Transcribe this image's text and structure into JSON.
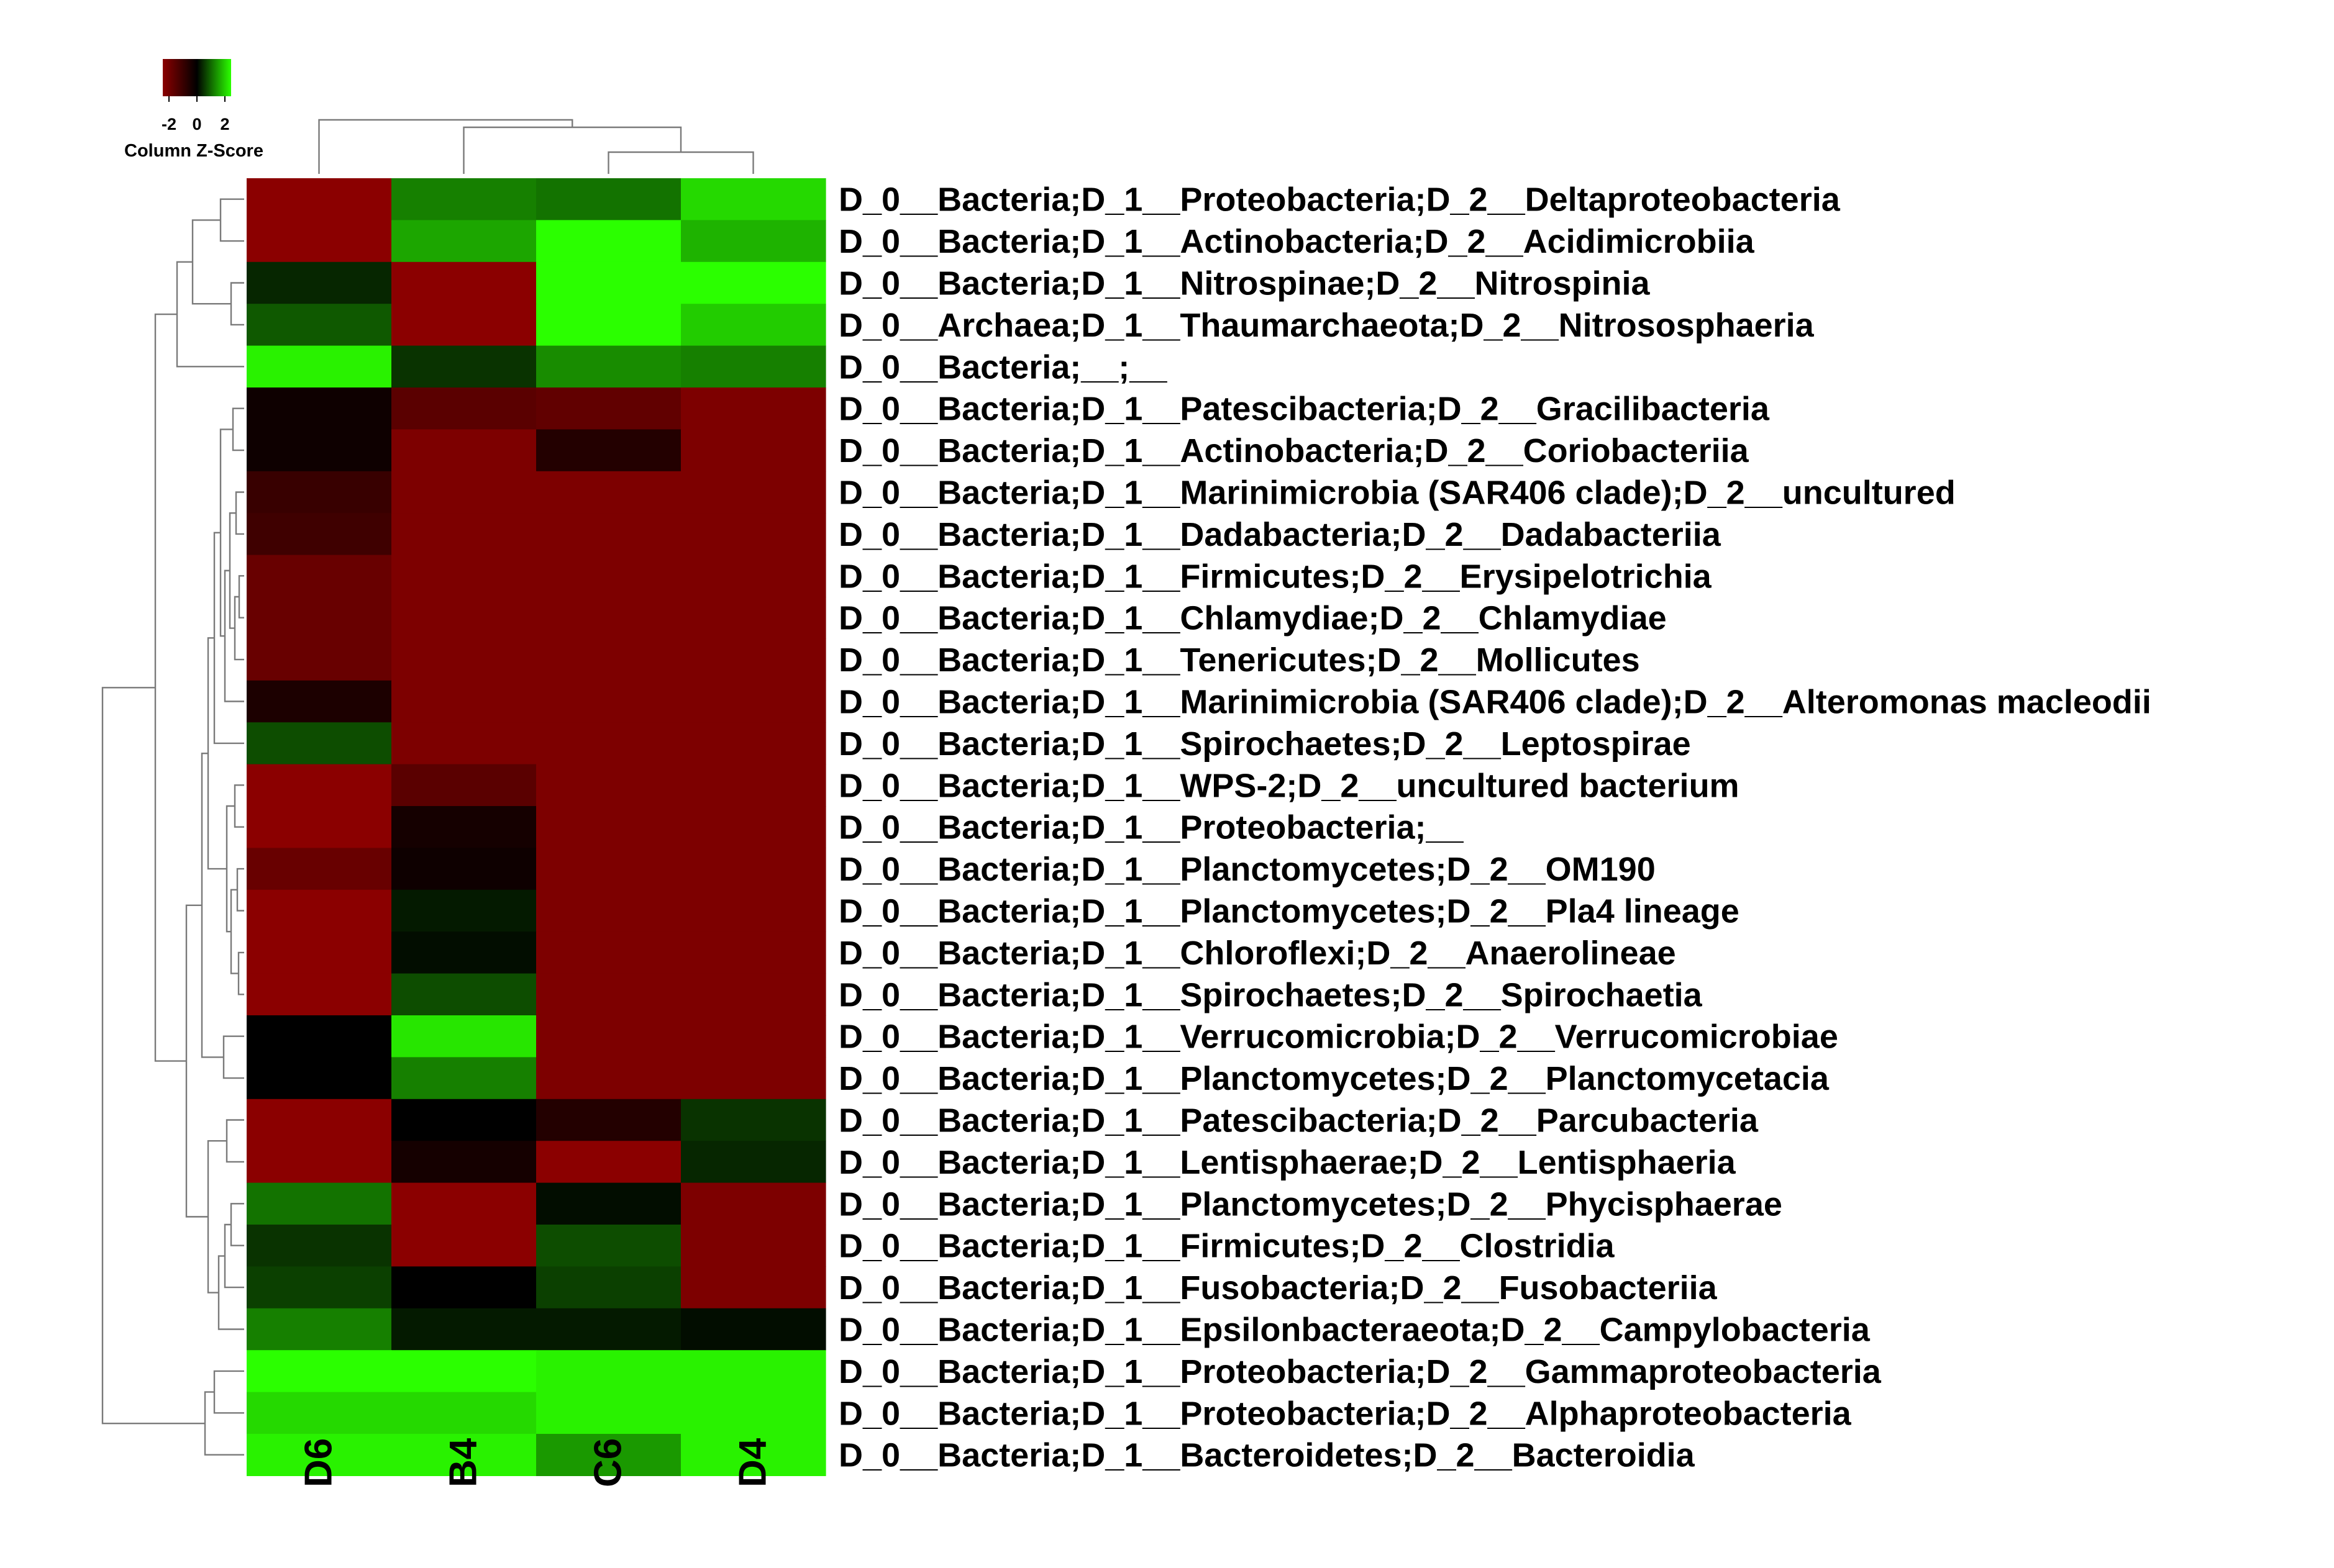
{
  "chart_data": {
    "type": "heatmap",
    "columns": [
      "D6",
      "B4",
      "C6",
      "D4"
    ],
    "rows": [
      "D_0__Bacteria;D_1__Proteobacteria;D_2__Deltaproteobacteria",
      "D_0__Bacteria;D_1__Actinobacteria;D_2__Acidimicrobiia",
      "D_0__Bacteria;D_1__Nitrospinae;D_2__Nitrospinia",
      "D_0__Archaea;D_1__Thaumarchaeota;D_2__Nitrososphaeria",
      "D_0__Bacteria;__;__",
      "D_0__Bacteria;D_1__Patescibacteria;D_2__Gracilibacteria",
      "D_0__Bacteria;D_1__Actinobacteria;D_2__Coriobacteriia",
      "D_0__Bacteria;D_1__Marinimicrobia (SAR406 clade);D_2__uncultured",
      "D_0__Bacteria;D_1__Dadabacteria;D_2__Dadabacteriia",
      "D_0__Bacteria;D_1__Firmicutes;D_2__Erysipelotrichia",
      "D_0__Bacteria;D_1__Chlamydiae;D_2__Chlamydiae",
      "D_0__Bacteria;D_1__Tenericutes;D_2__Mollicutes",
      "D_0__Bacteria;D_1__Marinimicrobia (SAR406 clade);D_2__Alteromonas macleodii",
      "D_0__Bacteria;D_1__Spirochaetes;D_2__Leptospirae",
      "D_0__Bacteria;D_1__WPS-2;D_2__uncultured bacterium",
      "D_0__Bacteria;D_1__Proteobacteria;__",
      "D_0__Bacteria;D_1__Planctomycetes;D_2__OM190",
      "D_0__Bacteria;D_1__Planctomycetes;D_2__Pla4 lineage",
      "D_0__Bacteria;D_1__Chloroflexi;D_2__Anaerolineae",
      "D_0__Bacteria;D_1__Spirochaetes;D_2__Spirochaetia",
      "D_0__Bacteria;D_1__Verrucomicrobia;D_2__Verrucomicrobiae",
      "D_0__Bacteria;D_1__Planctomycetes;D_2__Planctomycetacia",
      "D_0__Bacteria;D_1__Patescibacteria;D_2__Parcubacteria",
      "D_0__Bacteria;D_1__Lentisphaerae;D_2__Lentisphaeria",
      "D_0__Bacteria;D_1__Planctomycetes;D_2__Phycisphaerae",
      "D_0__Bacteria;D_1__Firmicutes;D_2__Clostridia",
      "D_0__Bacteria;D_1__Fusobacteria;D_2__Fusobacteriia",
      "D_0__Bacteria;D_1__Epsilonbacteraeota;D_2__Campylobacteria",
      "D_0__Bacteria;D_1__Proteobacteria;D_2__Gammaproteobacteria",
      "D_0__Bacteria;D_1__Proteobacteria;D_2__Alphaproteobacteria",
      "D_0__Bacteria;D_1__Bacteroidetes;D_2__Bacteroidia"
    ],
    "values": [
      [
        -2.0,
        1.0,
        0.9,
        1.7
      ],
      [
        -2.0,
        1.3,
        2.0,
        1.4
      ],
      [
        0.3,
        -2.0,
        2.0,
        2.0
      ],
      [
        0.7,
        -2.0,
        2.0,
        1.6
      ],
      [
        1.9,
        0.4,
        1.1,
        1.0
      ],
      [
        -0.2,
        -1.3,
        -1.4,
        -1.8
      ],
      [
        -0.2,
        -1.8,
        -0.5,
        -1.8
      ],
      [
        -0.8,
        -1.8,
        -1.8,
        -1.8
      ],
      [
        -0.9,
        -1.8,
        -1.8,
        -1.8
      ],
      [
        -1.5,
        -1.8,
        -1.8,
        -1.8
      ],
      [
        -1.5,
        -1.8,
        -1.8,
        -1.8
      ],
      [
        -1.5,
        -1.8,
        -1.8,
        -1.8
      ],
      [
        -0.4,
        -1.8,
        -1.8,
        -1.8
      ],
      [
        0.6,
        -1.8,
        -1.8,
        -1.8
      ],
      [
        -2.0,
        -1.3,
        -1.8,
        -1.8
      ],
      [
        -2.0,
        -0.3,
        -1.8,
        -1.8
      ],
      [
        -1.5,
        -0.2,
        -1.8,
        -1.8
      ],
      [
        -2.0,
        0.2,
        -1.8,
        -1.8
      ],
      [
        -2.0,
        0.1,
        -1.8,
        -1.8
      ],
      [
        -2.0,
        0.6,
        -1.8,
        -1.8
      ],
      [
        0.0,
        1.8,
        -1.8,
        -1.8
      ],
      [
        0.0,
        1.0,
        -1.8,
        -1.8
      ],
      [
        -2.0,
        0.0,
        -0.5,
        0.4
      ],
      [
        -2.0,
        -0.3,
        -2.0,
        0.3
      ],
      [
        0.9,
        -2.0,
        0.1,
        -1.8
      ],
      [
        0.4,
        -2.0,
        0.6,
        -1.8
      ],
      [
        0.5,
        0.0,
        0.5,
        -1.8
      ],
      [
        1.0,
        0.2,
        0.2,
        0.1
      ],
      [
        2.0,
        2.0,
        1.9,
        1.9
      ],
      [
        1.7,
        1.7,
        1.9,
        1.9
      ],
      [
        1.9,
        1.9,
        1.2,
        1.9
      ]
    ],
    "legend": {
      "title": "Column Z-Score",
      "ticks": [
        "-2",
        "0",
        "2"
      ],
      "range": [
        -2,
        2
      ],
      "placement": "top-left"
    },
    "colors": {
      "low": "#8b0000",
      "mid": "#000000",
      "high": "#2bff00"
    },
    "column_dendrogram": "top",
    "row_dendrogram": "left"
  }
}
